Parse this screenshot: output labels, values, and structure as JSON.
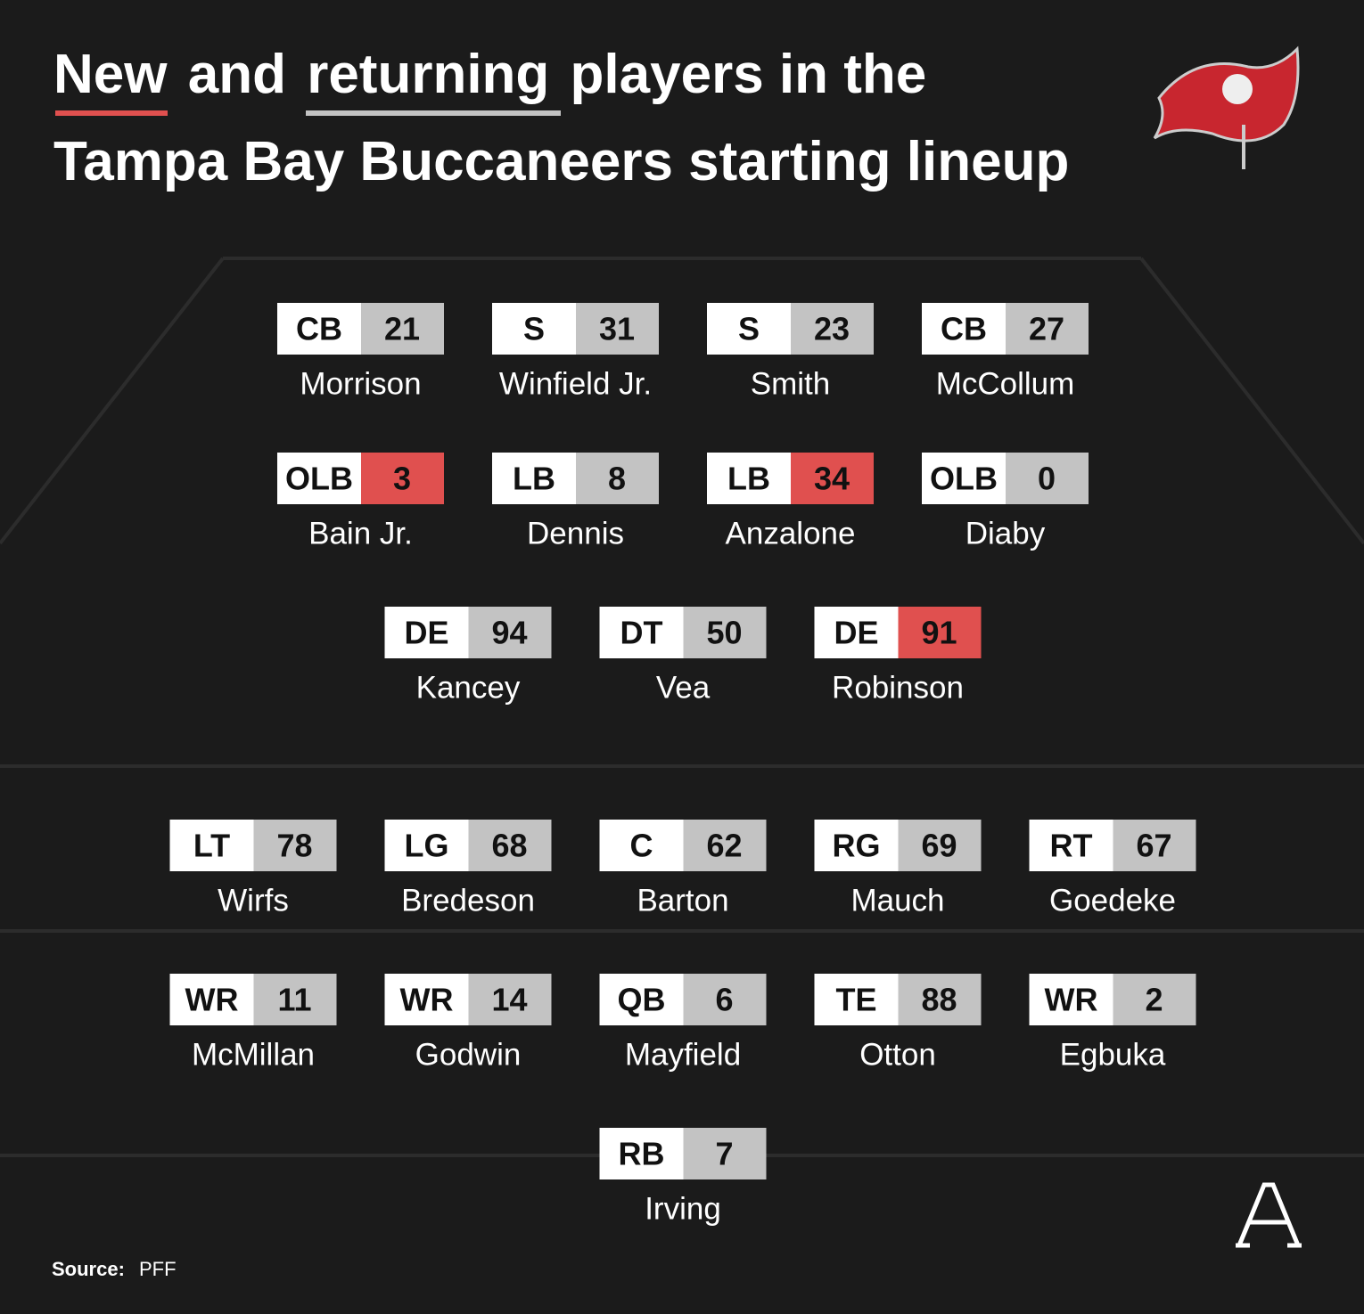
{
  "title": {
    "new": "New",
    "and": "and",
    "returning": "returning",
    "rest": "players in the",
    "line2": "Tampa Bay Buccaneers starting lineup"
  },
  "colors": {
    "new": "#e0504f",
    "returning": "#c3c3c3"
  },
  "rows": [
    [
      {
        "position": "CB",
        "number": 21,
        "name": "Morrison",
        "status": "returning"
      },
      {
        "position": "S",
        "number": 31,
        "name": "Winfield Jr.",
        "status": "returning"
      },
      {
        "position": "S",
        "number": 23,
        "name": "Smith",
        "status": "returning"
      },
      {
        "position": "CB",
        "number": 27,
        "name": "McCollum",
        "status": "returning"
      }
    ],
    [
      {
        "position": "OLB",
        "number": 3,
        "name": "Bain Jr.",
        "status": "new"
      },
      {
        "position": "LB",
        "number": 8,
        "name": "Dennis",
        "status": "returning"
      },
      {
        "position": "LB",
        "number": 34,
        "name": "Anzalone",
        "status": "new"
      },
      {
        "position": "OLB",
        "number": 0,
        "name": "Diaby",
        "status": "returning"
      }
    ],
    [
      {
        "position": "DE",
        "number": 94,
        "name": "Kancey",
        "status": "returning"
      },
      {
        "position": "DT",
        "number": 50,
        "name": "Vea",
        "status": "returning"
      },
      {
        "position": "DE",
        "number": 91,
        "name": "Robinson",
        "status": "new"
      }
    ],
    [
      {
        "position": "LT",
        "number": 78,
        "name": "Wirfs",
        "status": "returning"
      },
      {
        "position": "LG",
        "number": 68,
        "name": "Bredeson",
        "status": "returning"
      },
      {
        "position": "C",
        "number": 62,
        "name": "Barton",
        "status": "returning"
      },
      {
        "position": "RG",
        "number": 69,
        "name": "Mauch",
        "status": "returning"
      },
      {
        "position": "RT",
        "number": 67,
        "name": "Goedeke",
        "status": "returning"
      }
    ],
    [
      {
        "position": "WR",
        "number": 11,
        "name": "McMillan",
        "status": "returning"
      },
      {
        "position": "WR",
        "number": 14,
        "name": "Godwin",
        "status": "returning"
      },
      {
        "position": "QB",
        "number": 6,
        "name": "Mayfield",
        "status": "returning"
      },
      {
        "position": "TE",
        "number": 88,
        "name": "Otton",
        "status": "returning"
      },
      {
        "position": "WR",
        "number": 2,
        "name": "Egbuka",
        "status": "returning"
      }
    ],
    [
      {
        "position": "RB",
        "number": 7,
        "name": "Irving",
        "status": "returning"
      }
    ]
  ],
  "source": {
    "label": "Source:",
    "text": "PFF"
  }
}
